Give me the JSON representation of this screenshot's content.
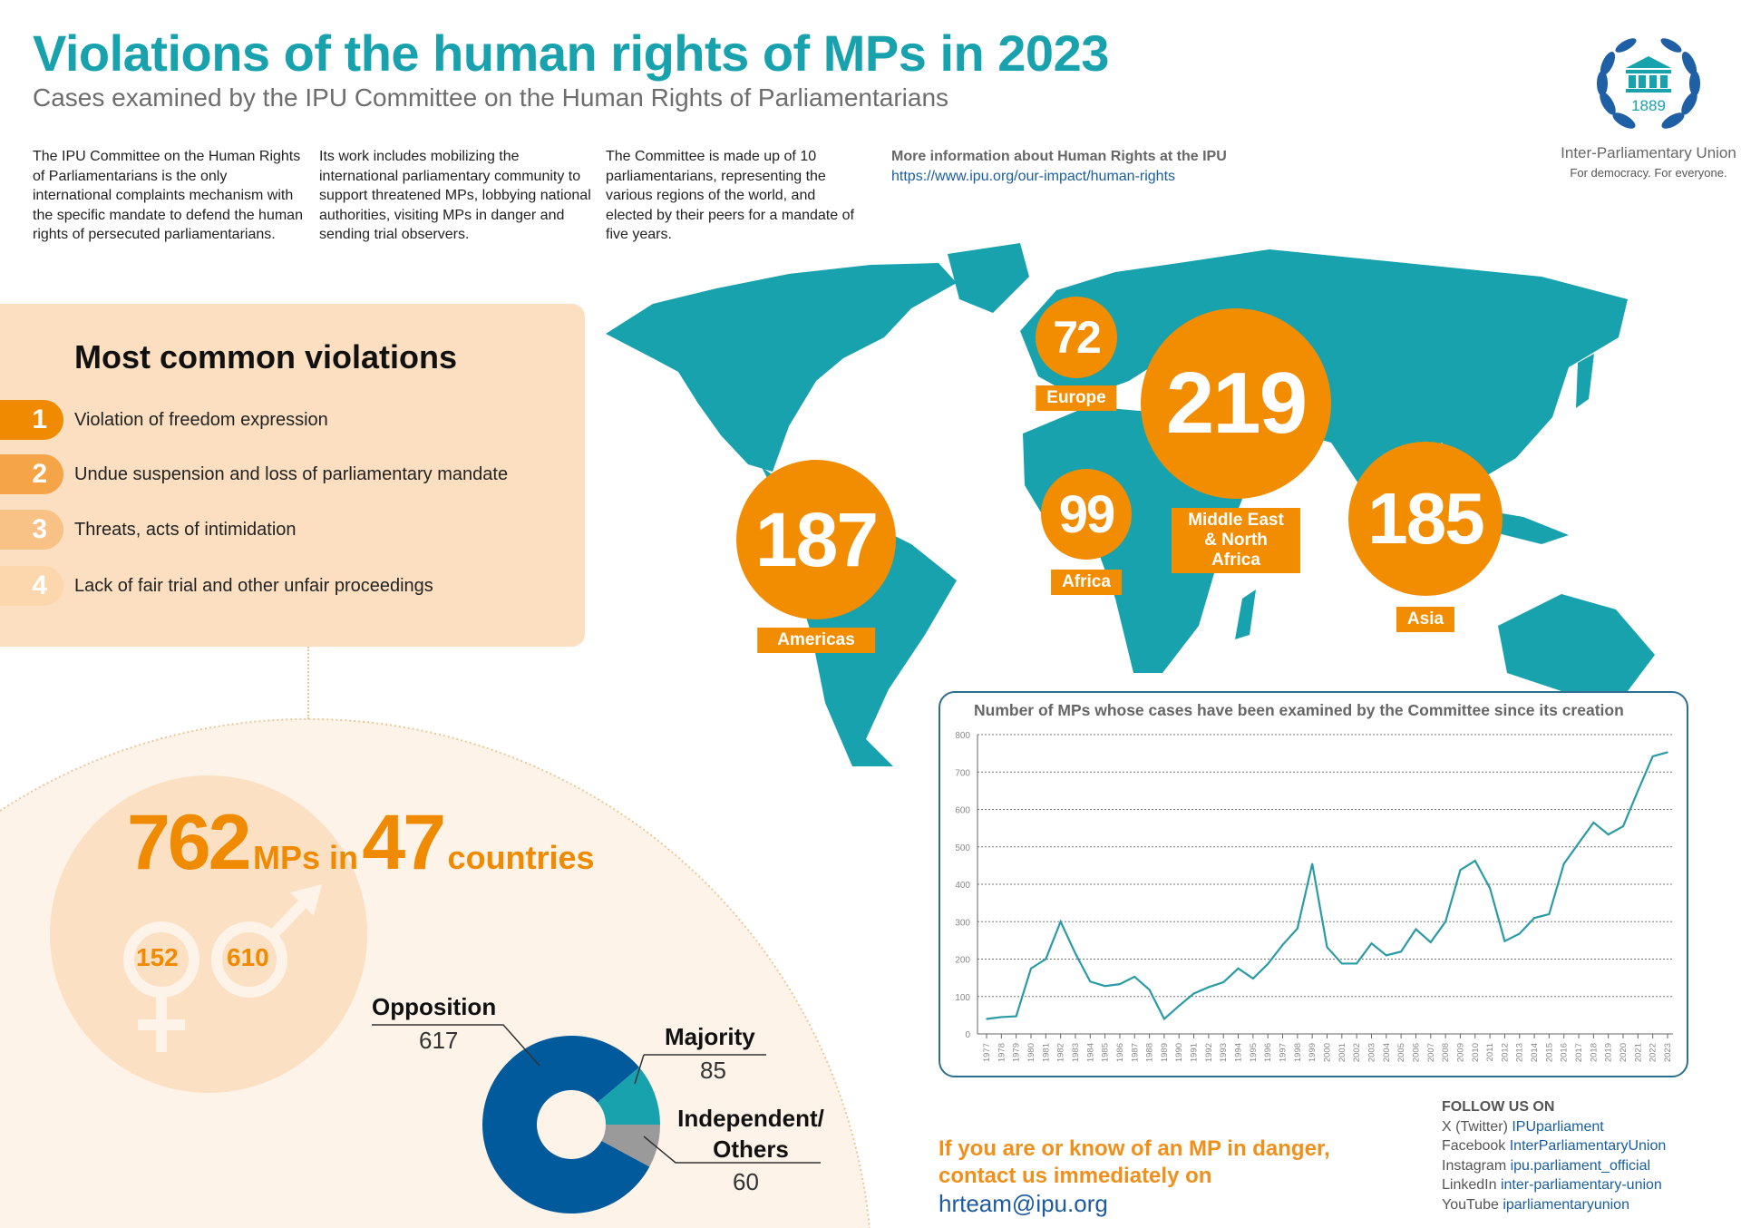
{
  "header": {
    "title": "Violations of the human rights of MPs in 2023",
    "subtitle": "Cases examined by the IPU Committee on the Human Rights of Parliamentarians"
  },
  "intro": [
    "The IPU Committee on the Human Rights of Parliamentarians is the only international complaints mechanism with the specific mandate to defend the human rights of persecuted parliamentarians.",
    "Its work includes mobilizing the international parliamentary community to support threatened MPs, lobbying national authorities, visiting MPs in danger and sending trial observers.",
    "The Committee is made up of 10 parliamentarians, representing the various regions of the world, and elected by their peers for a mandate of five years."
  ],
  "more_info": {
    "heading": "More information about Human Rights at the IPU",
    "link": "https://www.ipu.org/our-impact/human-rights"
  },
  "logo": {
    "year": "1889",
    "org": "Inter-Parliamentary Union",
    "tagline": "For democracy. For everyone."
  },
  "violations": {
    "heading": "Most common violations",
    "items": [
      {
        "rank": "1",
        "label": "Violation of freedom expression",
        "color": "#f08a00"
      },
      {
        "rank": "2",
        "label": "Undue suspension and loss of parliamentary mandate",
        "color": "#f5a548"
      },
      {
        "rank": "3",
        "label": "Threats, acts of intimidation",
        "color": "#f8c287"
      },
      {
        "rank": "4",
        "label": "Lack of fair trial and other unfair proceedings",
        "color": "#fcd6ac"
      }
    ]
  },
  "totals": {
    "mps": "762",
    "mps_label": "MPs in",
    "countries": "47",
    "countries_label": "countries",
    "women": "152",
    "men": "610"
  },
  "regions": [
    {
      "name": "Europe",
      "value": "72"
    },
    {
      "name": "Middle East & North Africa",
      "value": "219"
    },
    {
      "name": "Africa",
      "value": "99"
    },
    {
      "name": "Americas",
      "value": "187"
    },
    {
      "name": "Asia",
      "value": "185"
    }
  ],
  "colors": {
    "teal": "#17a2ae",
    "orange": "#f28c00",
    "blue": "#005a9c",
    "grey": "#9a9a9a"
  },
  "chart_data": [
    {
      "type": "line",
      "title": "Number of MPs whose cases have been examined by the Committee since its creation",
      "xlabel": "",
      "ylabel": "",
      "ylim": [
        0,
        800
      ],
      "yticks": [
        "0",
        "100",
        "200",
        "300",
        "400",
        "500",
        "600",
        "700",
        "800"
      ],
      "grid": true,
      "x": [
        "1977",
        "1978",
        "1979",
        "1980",
        "1981",
        "1982",
        "1983",
        "1984",
        "1985",
        "1986",
        "1987",
        "1988",
        "1989",
        "1990",
        "1991",
        "1992",
        "1993",
        "1994",
        "1995",
        "1996",
        "1997",
        "1998",
        "1999",
        "2000",
        "2001",
        "2002",
        "2003",
        "2004",
        "2005",
        "2006",
        "2007",
        "2008",
        "2009",
        "2010",
        "2011",
        "2012",
        "2013",
        "2014",
        "2015",
        "2016",
        "2017",
        "2018",
        "2019",
        "2020",
        "2021",
        "2022",
        "2023"
      ],
      "series": [
        {
          "name": "MPs",
          "values": [
            40,
            45,
            47,
            175,
            200,
            300,
            215,
            140,
            128,
            133,
            153,
            118,
            40,
            75,
            108,
            125,
            138,
            175,
            148,
            187,
            238,
            282,
            455,
            232,
            188,
            188,
            242,
            210,
            220,
            280,
            245,
            300,
            438,
            463,
            390,
            248,
            268,
            310,
            320,
            455,
            510,
            565,
            533,
            555,
            650,
            742,
            753
          ]
        }
      ]
    },
    {
      "type": "pie",
      "title": "",
      "categories": [
        "Opposition",
        "Majority",
        "Independent/ Others"
      ],
      "values": [
        617,
        85,
        60
      ]
    }
  ],
  "contact": {
    "line1": "If you are or know of an MP in danger,",
    "line2": "contact us immediately on",
    "email": "hrteam@ipu.org"
  },
  "follow": {
    "heading": "FOLLOW US ON",
    "items": [
      {
        "platform": "X (Twitter)",
        "handle": "IPUparliament"
      },
      {
        "platform": "Facebook",
        "handle": "InterParliamentaryUnion"
      },
      {
        "platform": "Instagram",
        "handle": "ipu.parliament_official"
      },
      {
        "platform": "LinkedIn",
        "handle": "inter-parliamentary-union"
      },
      {
        "platform": "YouTube",
        "handle": "iparliamentaryunion"
      }
    ]
  }
}
